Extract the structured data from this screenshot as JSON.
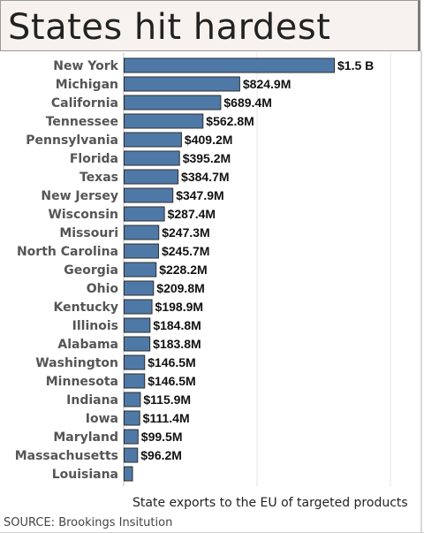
{
  "header": {
    "title": "States hit hardest"
  },
  "chart_data": {
    "type": "bar",
    "orientation": "horizontal",
    "title": "States hit hardest",
    "xlabel": "State exports to the EU of targeted products",
    "ylabel": "",
    "unit": "USD millions",
    "xlim": [
      0,
      1550
    ],
    "categories": [
      "New York",
      "Michigan",
      "California",
      "Tennessee",
      "Pennsylvania",
      "Florida",
      "Texas",
      "New Jersey",
      "Wisconsin",
      "Missouri",
      "North Carolina",
      "Georgia",
      "Ohio",
      "Kentucky",
      "Illinois",
      "Alabama",
      "Washington",
      "Minnesota",
      "Indiana",
      "Iowa",
      "Maryland",
      "Massachusetts",
      "Louisiana"
    ],
    "values": [
      1500,
      824.9,
      689.4,
      562.8,
      409.2,
      395.2,
      384.7,
      347.9,
      287.4,
      247.3,
      245.7,
      228.2,
      209.8,
      198.9,
      184.8,
      183.8,
      146.5,
      146.5,
      115.9,
      111.4,
      99.5,
      96.2,
      60
    ],
    "labels": [
      "$1.5 B",
      "$824.9M",
      "$689.4M",
      "$562.8M",
      "$409.2M",
      "$395.2M",
      "$384.7M",
      "$347.9M",
      "$287.4M",
      "$247.3M",
      "$245.7M",
      "$228.2M",
      "$209.8M",
      "$198.9M",
      "$184.8M",
      "$183.8M",
      "$146.5M",
      "$146.5M",
      "$115.9M",
      "$111.4M",
      "$99.5M",
      "$96.2M",
      ""
    ],
    "bar_color": "#4e79a7",
    "bar_edge_color": "#2d2d2d",
    "grid": true
  },
  "footer": {
    "caption": "State exports to the EU of targeted products",
    "source": "SOURCE: Brookings Insitution"
  }
}
